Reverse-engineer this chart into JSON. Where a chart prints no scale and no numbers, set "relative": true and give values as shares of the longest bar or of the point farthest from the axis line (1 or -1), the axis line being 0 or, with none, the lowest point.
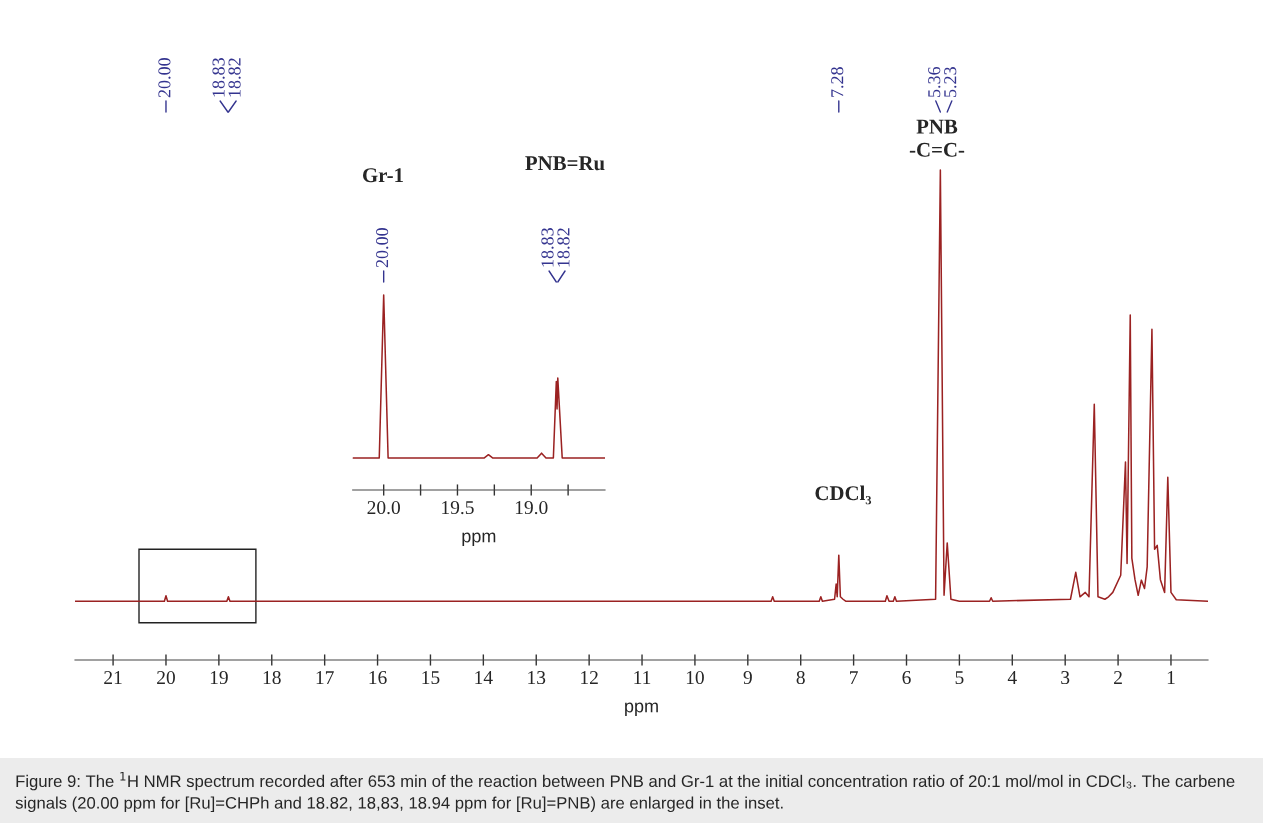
{
  "chart_data": [
    {
      "type": "line",
      "relative": true,
      "xlabel": "ppm",
      "xlim": [
        21.72,
        0.3
      ],
      "xticks": [
        21,
        20,
        19,
        18,
        17,
        16,
        15,
        14,
        13,
        12,
        11,
        10,
        9,
        8,
        7,
        6,
        5,
        4,
        3,
        2,
        1
      ],
      "x": [
        21.72,
        20.03,
        20.0,
        19.97,
        18.85,
        18.82,
        18.79,
        8.56,
        8.53,
        8.5,
        7.65,
        7.62,
        7.59,
        7.36,
        7.33,
        7.31,
        7.28,
        7.25,
        7.2,
        7.15,
        6.4,
        6.37,
        6.33,
        6.25,
        6.22,
        6.19,
        5.45,
        5.36,
        5.29,
        5.23,
        5.16,
        5.0,
        4.43,
        4.4,
        4.37,
        2.9,
        2.8,
        2.72,
        2.62,
        2.55,
        2.45,
        2.38,
        2.25,
        2.18,
        2.1,
        1.95,
        1.86,
        1.83,
        1.77,
        1.74,
        1.68,
        1.62,
        1.56,
        1.5,
        1.45,
        1.36,
        1.31,
        1.26,
        1.2,
        1.12,
        1.06,
        1.0,
        0.9,
        0.3
      ],
      "series": [
        {
          "color": "#9b2222",
          "values": [
            0.12,
            0.12,
            0.131,
            0.12,
            0.12,
            0.129,
            0.12,
            0.12,
            0.129,
            0.12,
            0.12,
            0.129,
            0.12,
            0.124,
            0.155,
            0.129,
            0.214,
            0.129,
            0.124,
            0.12,
            0.12,
            0.131,
            0.12,
            0.12,
            0.129,
            0.12,
            0.124,
            1.0,
            0.132,
            0.239,
            0.124,
            0.12,
            0.12,
            0.127,
            0.12,
            0.124,
            0.179,
            0.129,
            0.138,
            0.129,
            0.522,
            0.129,
            0.124,
            0.129,
            0.138,
            0.173,
            0.404,
            0.197,
            0.704,
            0.208,
            0.164,
            0.132,
            0.163,
            0.146,
            0.19,
            0.675,
            0.226,
            0.234,
            0.164,
            0.138,
            0.373,
            0.138,
            0.123,
            0.12
          ]
        }
      ],
      "annotations": [
        {
          "text": "20.00",
          "x": 20.0
        },
        {
          "text": "18.83",
          "x": 18.83
        },
        {
          "text": "18.82",
          "x": 18.82
        },
        {
          "text": "7.28",
          "x": 7.28
        },
        {
          "text": "5.36",
          "x": 5.36
        },
        {
          "text": "5.23",
          "x": 5.23
        },
        "PNB\n-C=C-",
        "CDCl₃",
        "Figure 9: The $^{1}$H NMR spectrum recorded after 653 min of the reaction between PNB and Gr-1 at the initial concentration ratio of 20:1 mol/mol in CDCl₃. The carbene signals (20.00 ppm for [Ru]=CHPh and 18.82, 18,83, 18.94 ppm for [Ru]=PNB) are enlarged in the inset."
      ]
    },
    {
      "type": "line",
      "relative": true,
      "xlabel": "ppm",
      "xlim": [
        20.21,
        18.5
      ],
      "xticks": [
        {
          "value": 20.0,
          "label": "20.0"
        },
        {
          "value": 19.75,
          "label": null
        },
        19.5,
        {
          "value": 19.25,
          "label": null
        },
        {
          "value": 19.0,
          "label": "19.0"
        },
        {
          "value": 18.75,
          "label": null
        }
      ],
      "x": [
        20.21,
        20.03,
        20.0,
        19.97,
        19.32,
        19.29,
        19.26,
        18.96,
        18.93,
        18.9,
        18.85,
        18.83,
        18.825,
        18.82,
        18.79,
        18.5
      ],
      "series": [
        {
          "color": "#9b2222",
          "values": [
            0.164,
            0.164,
            1.0,
            0.164,
            0.164,
            0.181,
            0.164,
            0.164,
            0.189,
            0.164,
            0.164,
            0.557,
            0.415,
            0.574,
            0.164,
            0.164
          ]
        }
      ],
      "annotations": [
        {
          "text": "20.00",
          "x": 20.0
        },
        {
          "text": "18.83",
          "x": 18.83
        },
        {
          "text": "18.82",
          "x": 18.82
        },
        "Gr-1",
        "PNB=Ru"
      ]
    }
  ]
}
